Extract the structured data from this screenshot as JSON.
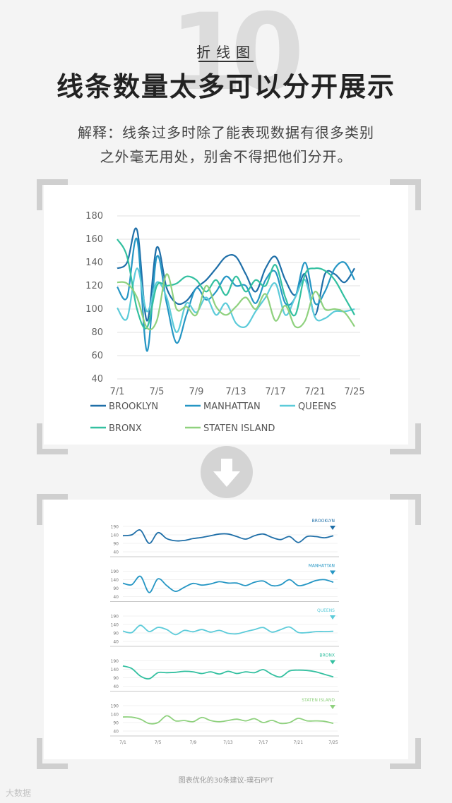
{
  "header": {
    "number": "10",
    "category": "折线图",
    "title": "线条数量太多可以分开展示",
    "explanation_line1": "解释：线条过多时除了能表现数据有很多类别",
    "explanation_line2": "之外毫无用处，别舍不得把他们分开。"
  },
  "footer": {
    "caption": "图表优化的30条建议-璞石PPT",
    "brand": "大数据"
  },
  "colors": {
    "BROOKLYN": "#1f6fa8",
    "MANHATTAN": "#2596c4",
    "QUEENS": "#5ccbd9",
    "BRONX": "#33c0a0",
    "STATEN ISLAND": "#8fd17e"
  },
  "chart_data": [
    {
      "type": "line",
      "x": [
        "7/1",
        "7/2",
        "7/3",
        "7/4",
        "7/5",
        "7/6",
        "7/7",
        "7/8",
        "7/9",
        "7/10",
        "7/11",
        "7/12",
        "7/13",
        "7/14",
        "7/15",
        "7/16",
        "7/17",
        "7/18",
        "7/19",
        "7/20",
        "7/21",
        "7/22",
        "7/23",
        "7/24",
        "7/25"
      ],
      "x_ticks": [
        "7/1",
        "7/5",
        "7/9",
        "7/13",
        "7/17",
        "7/21",
        "7/25"
      ],
      "ylim": [
        40,
        180
      ],
      "y_ticks": [
        40,
        60,
        80,
        100,
        120,
        140,
        160,
        180
      ],
      "legend": "bottom",
      "grid": true,
      "series": [
        {
          "name": "BROOKLYN",
          "values": [
            135,
            140,
            168,
            90,
            153,
            118,
            105,
            107,
            118,
            125,
            135,
            145,
            145,
            130,
            115,
            135,
            145,
            125,
            112,
            130,
            95,
            130,
            130,
            123,
            135
          ]
        },
        {
          "name": "MANHATTAN",
          "values": [
            119,
            110,
            160,
            64,
            145,
            105,
            71,
            95,
            118,
            108,
            115,
            128,
            120,
            120,
            105,
            125,
            132,
            105,
            110,
            140,
            105,
            115,
            135,
            140,
            125
          ]
        },
        {
          "name": "QUEENS",
          "values": [
            101,
            92,
            135,
            98,
            123,
            110,
            80,
            105,
            97,
            110,
            95,
            105,
            88,
            85,
            98,
            110,
            122,
            95,
            110,
            125,
            93,
            92,
            98,
            98,
            100
          ]
        },
        {
          "name": "BRONX",
          "values": [
            160,
            145,
            100,
            84,
            120,
            120,
            122,
            128,
            125,
            115,
            125,
            112,
            128,
            115,
            125,
            120,
            138,
            110,
            95,
            130,
            135,
            133,
            125,
            110,
            95
          ]
        },
        {
          "name": "STATEN ISLAND",
          "values": [
            123,
            122,
            110,
            84,
            90,
            130,
            100,
            102,
            95,
            120,
            102,
            95,
            102,
            110,
            100,
            113,
            90,
            103,
            85,
            90,
            115,
            100,
            100,
            97,
            85
          ]
        }
      ]
    },
    {
      "type": "line",
      "title": "small multiples",
      "x_ticks": [
        "7/1",
        "7/5",
        "7/9",
        "7/13",
        "7/17",
        "7/21",
        "7/25"
      ],
      "panels": [
        {
          "name": "BROOKLYN",
          "y_ticks": [
            40,
            90,
            140,
            190
          ]
        },
        {
          "name": "MANHATTAN",
          "y_ticks": [
            40,
            90,
            140,
            190
          ]
        },
        {
          "name": "QUEENS",
          "y_ticks": [
            40,
            90,
            140,
            190
          ]
        },
        {
          "name": "BRONX",
          "y_ticks": [
            40,
            90,
            140,
            190
          ]
        },
        {
          "name": "STATEN ISLAND",
          "y_ticks": [
            40,
            90,
            140,
            190
          ]
        }
      ]
    }
  ]
}
